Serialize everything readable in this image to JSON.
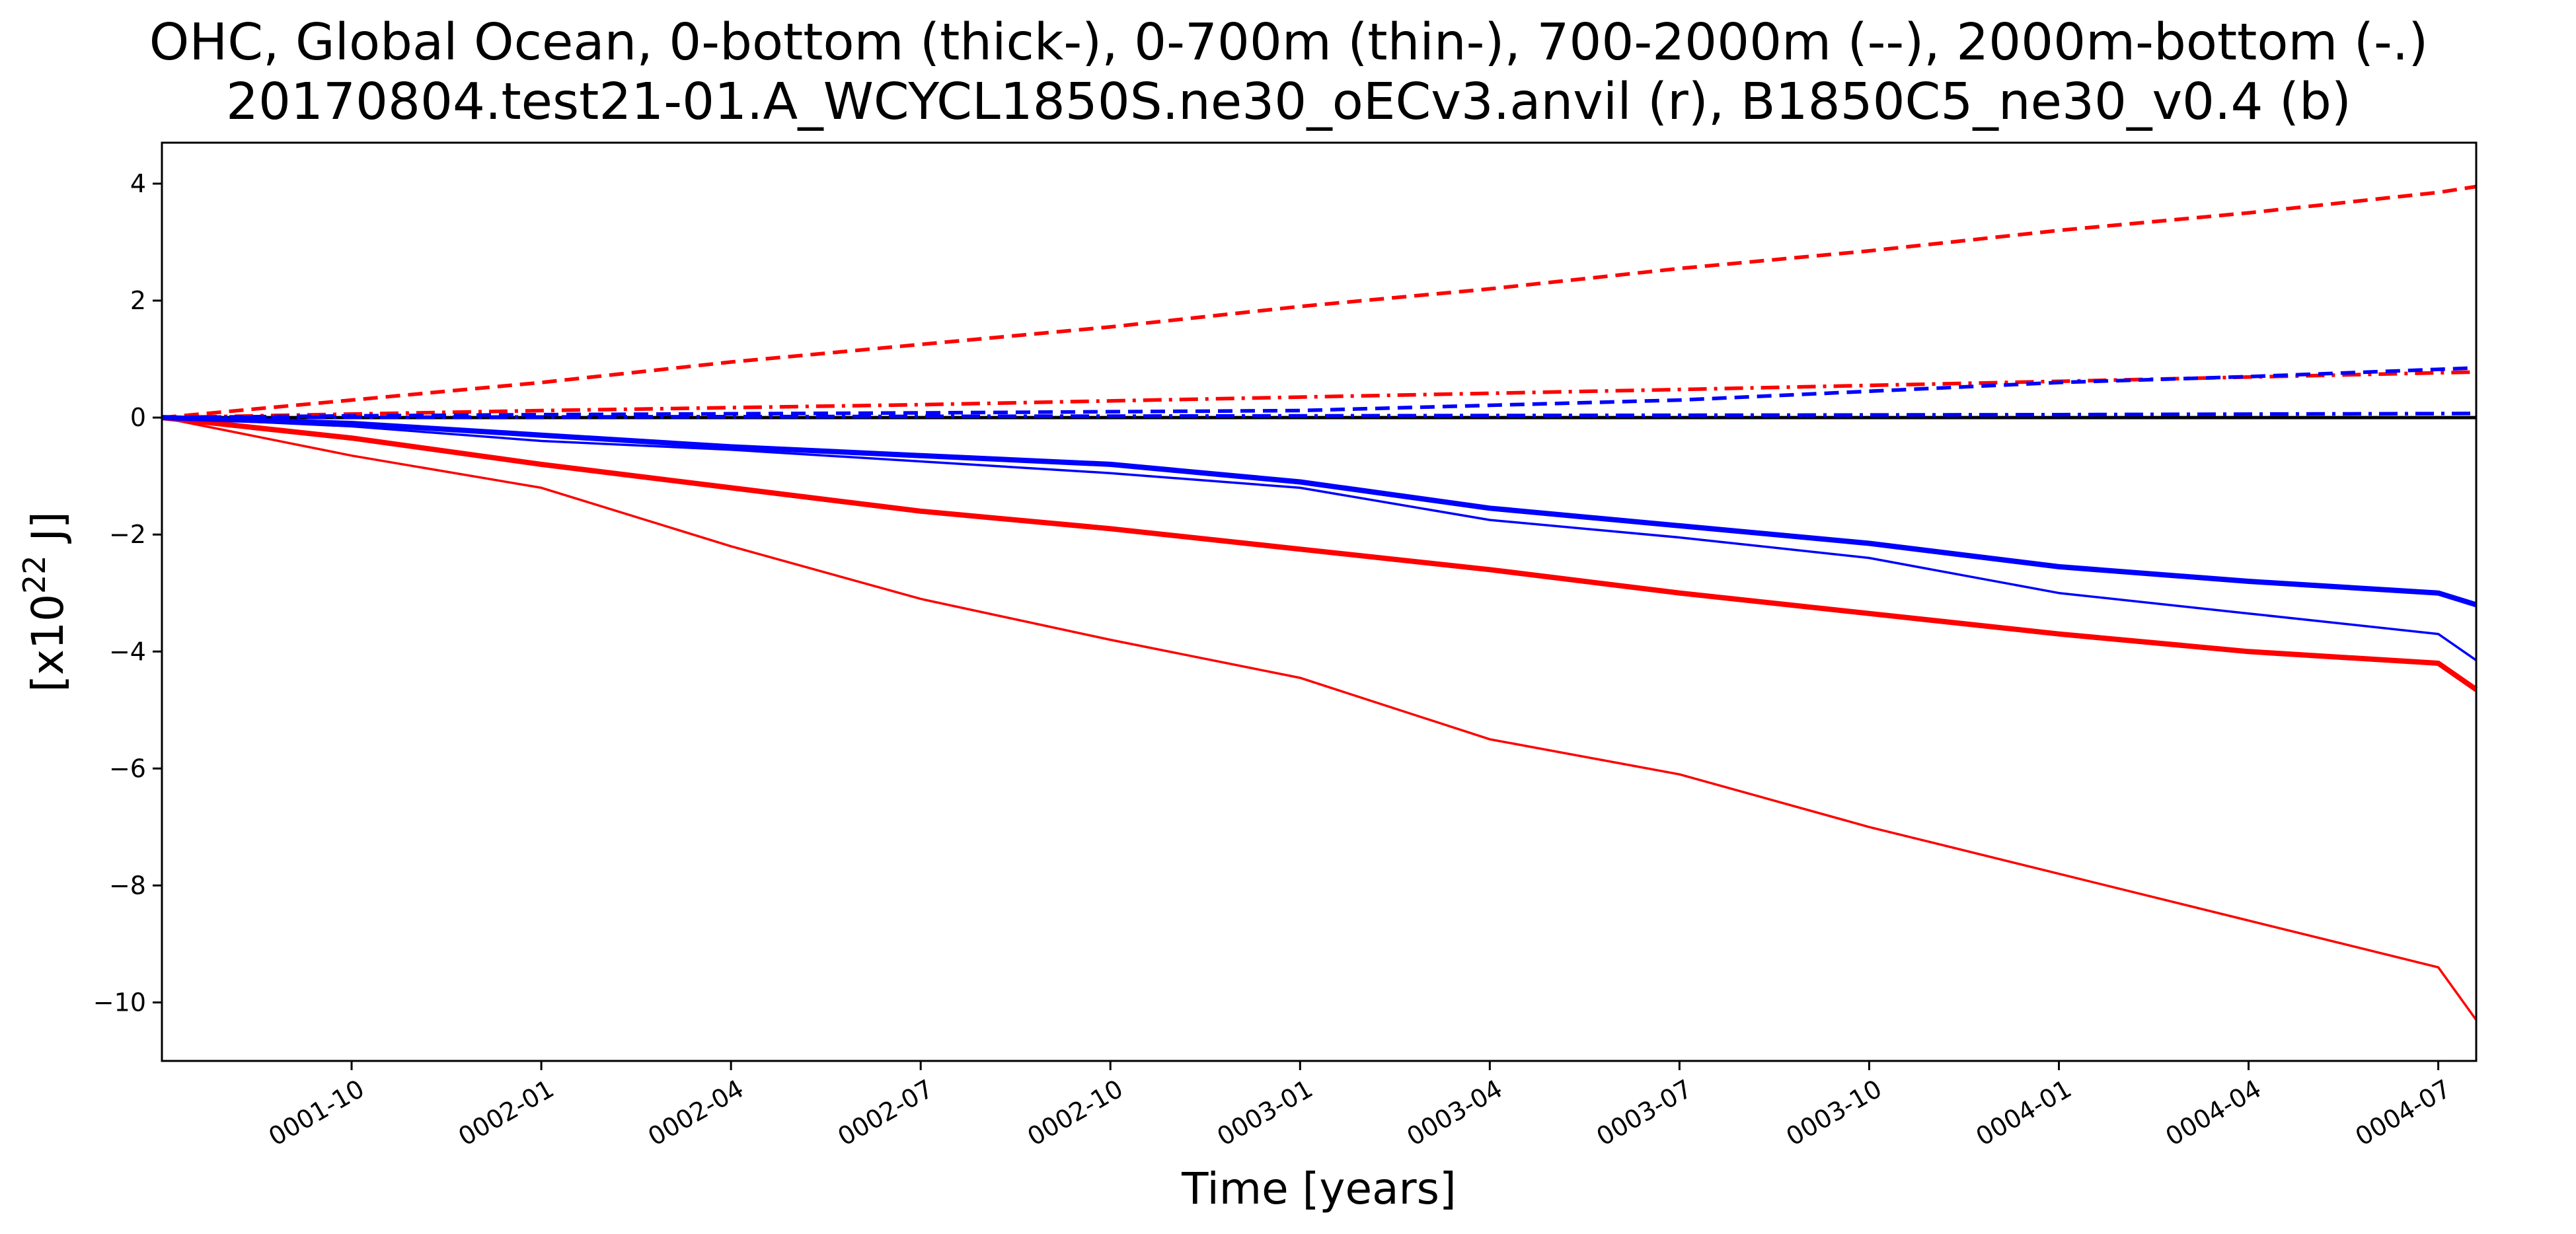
{
  "chart_data": {
    "type": "line",
    "title": "OHC, Global Ocean, 0-bottom (thick-), 0-700m (thin-), 700-2000m (--), 2000m-bottom (-.)",
    "subtitle": "20170804.test21-01.A_WCYCL1850S.ne30_oECv3.anvil (r), B1850C5_ne30_v0.4 (b)",
    "xlabel": "Time [years]",
    "ylabel_prefix": "[x10",
    "ylabel_exponent": "22",
    "ylabel_suffix": " J]",
    "xlim": [
      1.5,
      4.55
    ],
    "ylim": [
      -11,
      4.7
    ],
    "grid": false,
    "x_ticks": [
      {
        "label": "0001-10",
        "x": 1.75
      },
      {
        "label": "0002-01",
        "x": 2.0
      },
      {
        "label": "0002-04",
        "x": 2.25
      },
      {
        "label": "0002-07",
        "x": 2.5
      },
      {
        "label": "0002-10",
        "x": 2.75
      },
      {
        "label": "0003-01",
        "x": 3.0
      },
      {
        "label": "0003-04",
        "x": 3.25
      },
      {
        "label": "0003-07",
        "x": 3.5
      },
      {
        "label": "0003-10",
        "x": 3.75
      },
      {
        "label": "0004-01",
        "x": 4.0
      },
      {
        "label": "0004-04",
        "x": 4.25
      },
      {
        "label": "0004-07",
        "x": 4.5
      }
    ],
    "y_ticks": [
      {
        "label": "4",
        "y": 4
      },
      {
        "label": "2",
        "y": 2
      },
      {
        "label": "0",
        "y": 0
      },
      {
        "label": "−2",
        "y": -2
      },
      {
        "label": "−4",
        "y": -4
      },
      {
        "label": "−6",
        "y": -6
      },
      {
        "label": "−8",
        "y": -8
      },
      {
        "label": "−10",
        "y": -10
      }
    ],
    "zero_line": 0,
    "series": [
      {
        "color": "#ff0000",
        "style": "solid",
        "weight": "thick",
        "x": [
          1.5,
          1.75,
          2.0,
          2.25,
          2.5,
          2.75,
          3.0,
          3.25,
          3.5,
          3.75,
          4.0,
          4.25,
          4.5,
          4.55
        ],
        "y": [
          0,
          -0.35,
          -0.8,
          -1.2,
          -1.6,
          -1.9,
          -2.25,
          -2.6,
          -3.0,
          -3.35,
          -3.7,
          -4.0,
          -4.2,
          -4.65
        ]
      },
      {
        "color": "#ff0000",
        "style": "solid",
        "weight": "thin",
        "x": [
          1.5,
          1.75,
          2.0,
          2.25,
          2.5,
          2.75,
          3.0,
          3.25,
          3.5,
          3.75,
          4.0,
          4.25,
          4.5,
          4.55
        ],
        "y": [
          0,
          -0.65,
          -1.2,
          -2.2,
          -3.1,
          -3.8,
          -4.45,
          -5.5,
          -6.1,
          -7.0,
          -7.8,
          -8.6,
          -9.4,
          -10.3
        ]
      },
      {
        "color": "#ff0000",
        "style": "dashed",
        "weight": "medium",
        "x": [
          1.5,
          1.75,
          2.0,
          2.25,
          2.5,
          2.75,
          3.0,
          3.25,
          3.5,
          3.75,
          4.0,
          4.25,
          4.5,
          4.55
        ],
        "y": [
          0,
          0.3,
          0.6,
          0.95,
          1.25,
          1.55,
          1.9,
          2.2,
          2.55,
          2.85,
          3.2,
          3.5,
          3.85,
          3.95
        ]
      },
      {
        "color": "#ff0000",
        "style": "dashdot",
        "weight": "medium",
        "x": [
          1.5,
          1.75,
          2.0,
          2.5,
          3.0,
          3.5,
          4.0,
          4.55
        ],
        "y": [
          0,
          0.06,
          0.12,
          0.22,
          0.35,
          0.48,
          0.62,
          0.78
        ]
      },
      {
        "color": "#0000ff",
        "style": "solid",
        "weight": "thick",
        "x": [
          1.5,
          1.75,
          2.0,
          2.25,
          2.5,
          2.75,
          3.0,
          3.25,
          3.5,
          3.75,
          4.0,
          4.25,
          4.5,
          4.55
        ],
        "y": [
          0,
          -0.1,
          -0.3,
          -0.5,
          -0.65,
          -0.8,
          -1.1,
          -1.55,
          -1.85,
          -2.15,
          -2.55,
          -2.8,
          -3.0,
          -3.2
        ]
      },
      {
        "color": "#0000ff",
        "style": "solid",
        "weight": "thin",
        "x": [
          1.5,
          1.75,
          2.0,
          2.25,
          2.5,
          2.75,
          3.0,
          3.25,
          3.5,
          3.75,
          4.0,
          4.25,
          4.5,
          4.55
        ],
        "y": [
          0,
          -0.15,
          -0.4,
          -0.55,
          -0.75,
          -0.95,
          -1.2,
          -1.75,
          -2.05,
          -2.4,
          -3.0,
          -3.35,
          -3.7,
          -4.15
        ]
      },
      {
        "color": "#0000ff",
        "style": "dashed",
        "weight": "medium",
        "x": [
          1.5,
          1.75,
          2.0,
          2.5,
          3.0,
          3.5,
          3.75,
          4.0,
          4.25,
          4.55
        ],
        "y": [
          0,
          0.03,
          0.05,
          0.08,
          0.12,
          0.3,
          0.45,
          0.6,
          0.7,
          0.85
        ]
      },
      {
        "color": "#0000ff",
        "style": "dashdot",
        "weight": "medium",
        "x": [
          1.5,
          2.0,
          2.5,
          3.0,
          3.5,
          4.0,
          4.55
        ],
        "y": [
          0,
          0.01,
          0.02,
          0.03,
          0.04,
          0.05,
          0.07
        ]
      }
    ]
  }
}
